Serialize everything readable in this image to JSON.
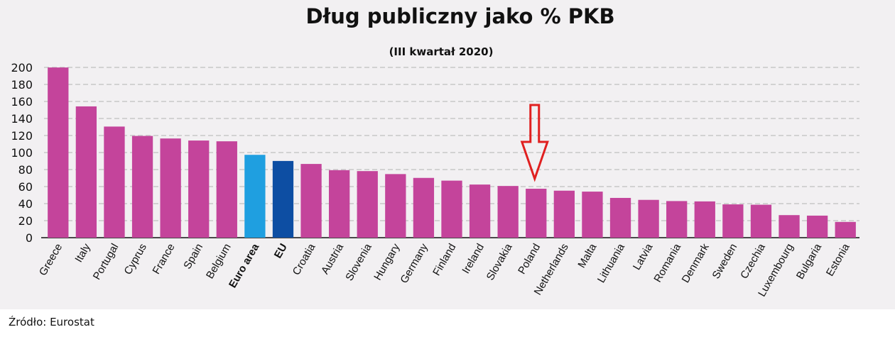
{
  "chart_data": {
    "type": "bar",
    "title": "Dług publiczny jako % PKB",
    "subtitle": "(III kwartał 2020)",
    "xlabel": "",
    "ylabel": "",
    "ylim": [
      0,
      200
    ],
    "yticks": [
      0,
      20,
      40,
      60,
      80,
      100,
      120,
      140,
      160,
      180,
      200
    ],
    "grid": true,
    "categories": [
      "Greece",
      "Italy",
      "Portugal",
      "Cyprus",
      "France",
      "Spain",
      "Belgium",
      "Euro area",
      "EU",
      "Croatia",
      "Austria",
      "Slovenia",
      "Hungary",
      "Germany",
      "Finland",
      "Ireland",
      "Slovakia",
      "Poland",
      "Netherlands",
      "Malta",
      "Lithuania",
      "Latvia",
      "Romania",
      "Denmark",
      "Sweden",
      "Czechia",
      "Luxembourg",
      "Bulgaria",
      "Estonia"
    ],
    "values": [
      199.9,
      154.2,
      130.5,
      119.5,
      116.5,
      114.1,
      113.2,
      97.3,
      90.1,
      86.6,
      79.3,
      78.2,
      74.7,
      70.2,
      67.0,
      62.4,
      60.7,
      57.5,
      55.2,
      54.1,
      46.7,
      44.4,
      43.0,
      42.6,
      39.1,
      38.7,
      26.5,
      25.9,
      18.5
    ],
    "bold_categories": [
      "Euro area",
      "EU"
    ],
    "colors": {
      "default": "#c4449b",
      "Euro area": "#1f9fe0",
      "EU": "#0d4ea3",
      "grid": "#c8c8c8",
      "axis": "#111111",
      "annotation_arrow": "#e02020"
    },
    "annotations": [
      {
        "type": "arrow",
        "target": "Poland"
      }
    ]
  },
  "source": "Źródło: Eurostat"
}
